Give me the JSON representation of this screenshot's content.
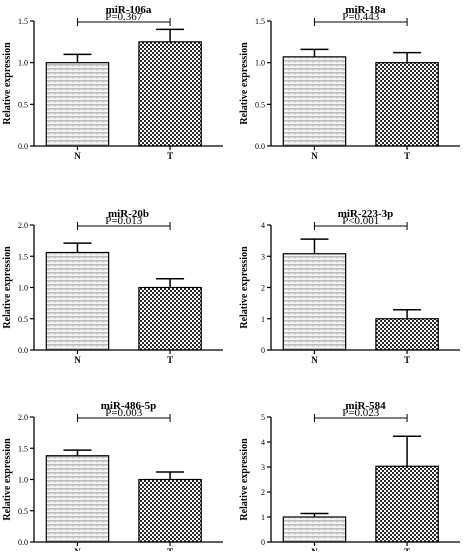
{
  "chart_data": [
    {
      "type": "bar",
      "title": "miR-106a",
      "ylabel": "Relative expression",
      "categories": [
        "N",
        "T"
      ],
      "values": [
        1.0,
        1.25
      ],
      "errors": [
        0.1,
        0.15
      ],
      "ylim": [
        0,
        1.5
      ],
      "yticks": [
        "0.0",
        "0.5",
        "1.0",
        "1.5"
      ],
      "pvalue": "P=0.367",
      "pattern": [
        "hatch",
        "check"
      ]
    },
    {
      "type": "bar",
      "title": "miR-18a",
      "ylabel": "Relative expression",
      "categories": [
        "N",
        "T"
      ],
      "values": [
        1.07,
        1.0
      ],
      "errors": [
        0.09,
        0.12
      ],
      "ylim": [
        0,
        1.5
      ],
      "yticks": [
        "0.0",
        "0.5",
        "1.0",
        "1.5"
      ],
      "pvalue": "P=0.443",
      "pattern": [
        "hatch",
        "check"
      ]
    },
    {
      "type": "bar",
      "title": "miR-20b",
      "ylabel": "Relative expression",
      "categories": [
        "N",
        "T"
      ],
      "values": [
        1.56,
        1.0
      ],
      "errors": [
        0.15,
        0.14
      ],
      "ylim": [
        0,
        2.0
      ],
      "yticks": [
        "0.0",
        "0.5",
        "1.0",
        "1.5",
        "2.0"
      ],
      "pvalue": "P=0.013",
      "pattern": [
        "hatch",
        "check"
      ]
    },
    {
      "type": "bar",
      "title": "miR-223-3p",
      "ylabel": "Relative expression",
      "categories": [
        "N",
        "T"
      ],
      "values": [
        3.08,
        1.0
      ],
      "errors": [
        0.47,
        0.29
      ],
      "ylim": [
        0,
        4
      ],
      "yticks": [
        "0",
        "1",
        "2",
        "3",
        "4"
      ],
      "pvalue": "P<0.001",
      "pattern": [
        "hatch",
        "check"
      ]
    },
    {
      "type": "bar",
      "title": "miR-486-5p",
      "ylabel": "Relative expression",
      "categories": [
        "N",
        "T"
      ],
      "values": [
        1.38,
        1.0
      ],
      "errors": [
        0.09,
        0.12
      ],
      "ylim": [
        0,
        2.0
      ],
      "yticks": [
        "0.0",
        "0.5",
        "1.0",
        "1.5",
        "2.0"
      ],
      "pvalue": "P=0.003",
      "pattern": [
        "hatch",
        "check"
      ]
    },
    {
      "type": "bar",
      "title": "miR-584",
      "ylabel": "Relative expression",
      "categories": [
        "N",
        "T"
      ],
      "values": [
        1.0,
        3.03
      ],
      "errors": [
        0.14,
        1.2
      ],
      "ylim": [
        0,
        5
      ],
      "yticks": [
        "0",
        "1",
        "2",
        "3",
        "4",
        "5"
      ],
      "pvalue": "P=0.023",
      "pattern": [
        "hatch",
        "check"
      ]
    }
  ]
}
